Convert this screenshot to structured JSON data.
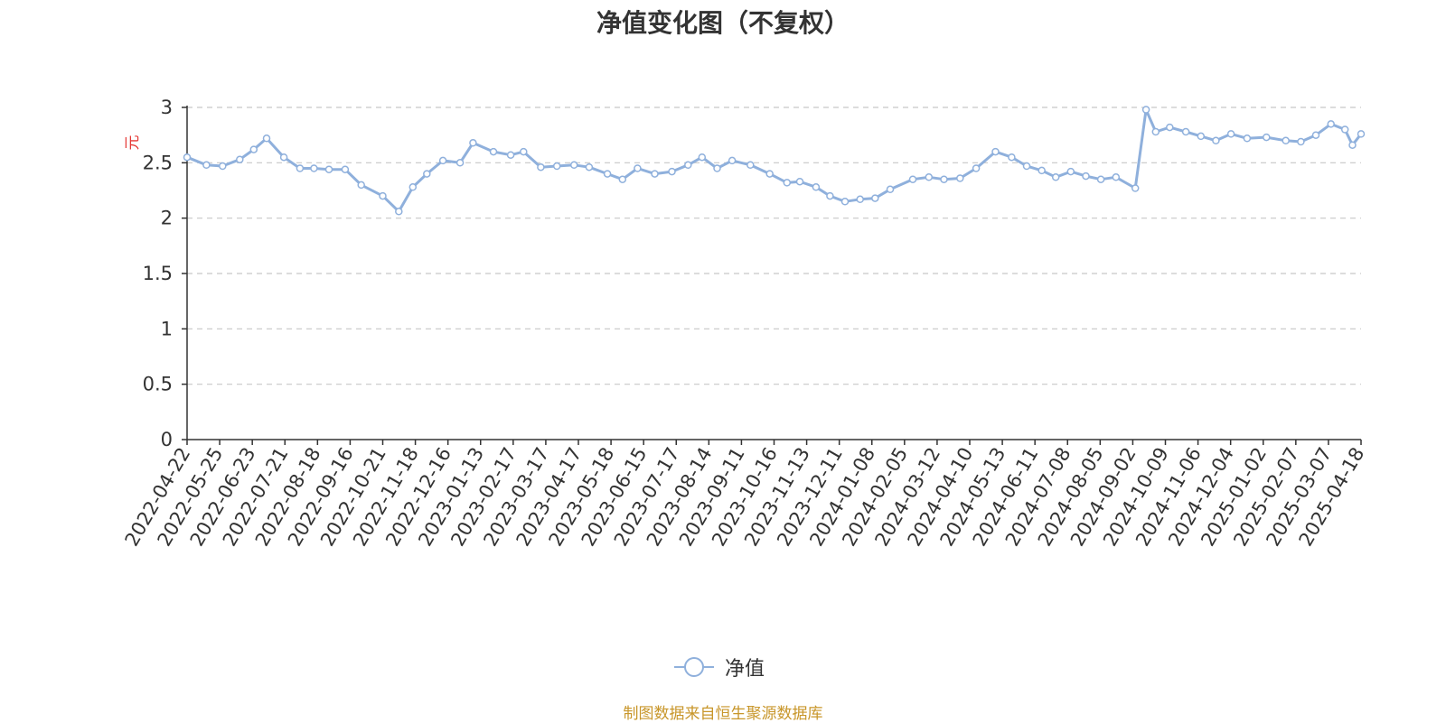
{
  "title": "净值变化图（不复权）",
  "legend_label": "净值",
  "source": "制图数据来自恒生聚源数据库",
  "colors": {
    "line": "#8fb0dc",
    "grid": "#c8c8c8",
    "axis": "#333333",
    "unit": "#e53935"
  },
  "chart_data": {
    "type": "line",
    "title": "净值变化图（不复权）",
    "ylabel": "元",
    "xlabel": "",
    "ylim": [
      0,
      3
    ],
    "yticks": [
      0,
      0.5,
      1,
      1.5,
      2,
      2.5,
      3
    ],
    "grid": true,
    "legend_position": "bottom-center",
    "x_ticks": [
      "2022-04-22",
      "2022-05-25",
      "2022-06-23",
      "2022-07-21",
      "2022-08-18",
      "2022-09-16",
      "2022-10-21",
      "2022-11-18",
      "2022-12-16",
      "2023-01-13",
      "2023-02-17",
      "2023-03-17",
      "2023-04-17",
      "2023-05-18",
      "2023-06-15",
      "2023-07-17",
      "2023-08-14",
      "2023-09-11",
      "2023-10-16",
      "2023-11-13",
      "2023-12-11",
      "2024-01-08",
      "2024-02-05",
      "2024-03-12",
      "2024-04-10",
      "2024-05-13",
      "2024-06-11",
      "2024-07-08",
      "2024-08-05",
      "2024-09-02",
      "2024-10-09",
      "2024-11-06",
      "2024-12-04",
      "2025-01-02",
      "2025-02-07",
      "2025-03-07",
      "2025-04-18"
    ],
    "series": [
      {
        "name": "净值",
        "x": [
          "2022-04-22",
          "2022-05-10",
          "2022-05-25",
          "2022-06-10",
          "2022-06-23",
          "2022-07-05",
          "2022-07-21",
          "2022-08-05",
          "2022-08-18",
          "2022-09-01",
          "2022-09-16",
          "2022-10-01",
          "2022-10-21",
          "2022-11-05",
          "2022-11-18",
          "2022-12-01",
          "2022-12-16",
          "2023-01-01",
          "2023-01-13",
          "2023-02-01",
          "2023-02-17",
          "2023-03-01",
          "2023-03-17",
          "2023-04-01",
          "2023-04-17",
          "2023-05-01",
          "2023-05-18",
          "2023-06-01",
          "2023-06-15",
          "2023-07-01",
          "2023-07-17",
          "2023-08-01",
          "2023-08-14",
          "2023-08-28",
          "2023-09-11",
          "2023-09-28",
          "2023-10-16",
          "2023-11-01",
          "2023-11-13",
          "2023-11-28",
          "2023-12-11",
          "2023-12-25",
          "2024-01-08",
          "2024-01-22",
          "2024-02-05",
          "2024-02-26",
          "2024-03-12",
          "2024-03-26",
          "2024-04-10",
          "2024-04-25",
          "2024-05-13",
          "2024-05-28",
          "2024-06-11",
          "2024-06-25",
          "2024-07-08",
          "2024-07-22",
          "2024-08-05",
          "2024-08-19",
          "2024-09-02",
          "2024-09-20",
          "2024-09-30",
          "2024-10-09",
          "2024-10-22",
          "2024-11-06",
          "2024-11-20",
          "2024-12-04",
          "2024-12-18",
          "2025-01-02",
          "2025-01-20",
          "2025-02-07",
          "2025-02-21",
          "2025-03-07",
          "2025-03-21",
          "2025-04-03",
          "2025-04-10",
          "2025-04-18"
        ],
        "values": [
          2.55,
          2.48,
          2.47,
          2.53,
          2.62,
          2.72,
          2.55,
          2.45,
          2.45,
          2.44,
          2.44,
          2.3,
          2.2,
          2.06,
          2.28,
          2.4,
          2.52,
          2.5,
          2.68,
          2.6,
          2.57,
          2.6,
          2.46,
          2.47,
          2.48,
          2.46,
          2.4,
          2.35,
          2.45,
          2.4,
          2.42,
          2.48,
          2.55,
          2.45,
          2.52,
          2.48,
          2.4,
          2.32,
          2.33,
          2.28,
          2.2,
          2.15,
          2.17,
          2.18,
          2.26,
          2.35,
          2.37,
          2.35,
          2.36,
          2.45,
          2.6,
          2.55,
          2.47,
          2.43,
          2.37,
          2.42,
          2.38,
          2.35,
          2.37,
          2.27,
          2.98,
          2.78,
          2.82,
          2.78,
          2.74,
          2.7,
          2.76,
          2.72,
          2.73,
          2.7,
          2.69,
          2.75,
          2.85,
          2.8,
          2.66,
          2.76
        ]
      }
    ]
  }
}
